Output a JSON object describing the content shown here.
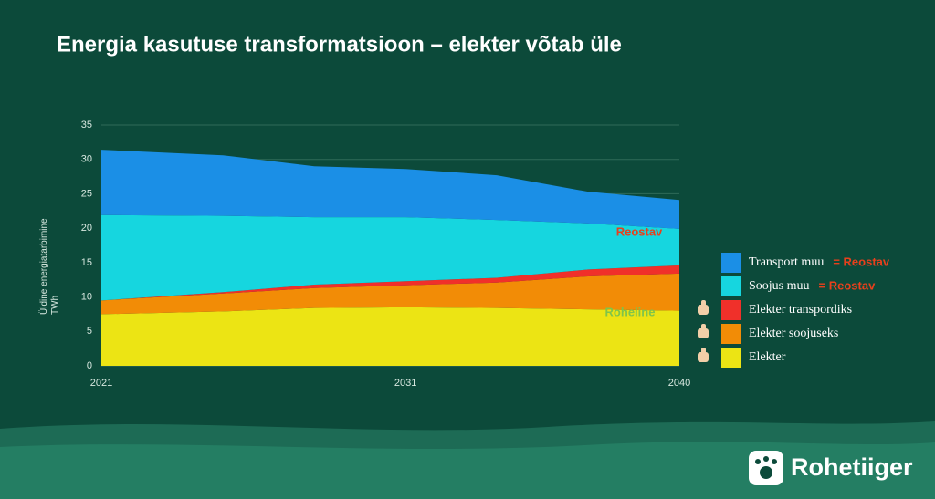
{
  "title": "Energia kasutuse transformatsioon – elekter võtab üle",
  "brand": "Rohetiiger",
  "chart_data": {
    "type": "stacked_area",
    "y_label": [
      "Üldine energiatarbimine",
      "TWh"
    ],
    "x": [
      2021,
      2025,
      2028,
      2031,
      2034,
      2037,
      2040
    ],
    "xlim": [
      2021,
      2040
    ],
    "xticks": [
      2021,
      2031,
      2040
    ],
    "ylim": [
      0,
      35
    ],
    "yticks": [
      0,
      5,
      10,
      15,
      20,
      25,
      30,
      35
    ],
    "grid": true,
    "series": [
      {
        "name": "Elekter",
        "color": "#ece414",
        "icon": "thumbs-up",
        "values": [
          7.5,
          7.9,
          8.4,
          8.5,
          8.4,
          8.2,
          8.0
        ]
      },
      {
        "name": "Elekter soojuseks",
        "color": "#f28c06",
        "icon": "thumbs-up",
        "values": [
          2.0,
          2.6,
          2.9,
          3.2,
          3.7,
          4.8,
          5.4
        ]
      },
      {
        "name": "Elekter transpordiks",
        "color": "#f0302a",
        "icon": "thumbs-up",
        "values": [
          0,
          0.2,
          0.5,
          0.6,
          0.7,
          1.0,
          1.2
        ]
      },
      {
        "name": "Soojus muu",
        "color": "#16d6df",
        "note": "= Reostav",
        "values": [
          12.4,
          11.1,
          9.8,
          9.3,
          8.4,
          6.7,
          5.3
        ]
      },
      {
        "name": "Transport muu",
        "color": "#1b8fe6",
        "note": "= Reostav",
        "values": [
          9.5,
          8.8,
          7.4,
          7.0,
          6.5,
          4.6,
          4.2
        ]
      }
    ],
    "annotations": [
      {
        "text": "Reostav",
        "color": "#e8401c"
      },
      {
        "text": "Roheline",
        "color": "#7fc44a"
      }
    ]
  }
}
